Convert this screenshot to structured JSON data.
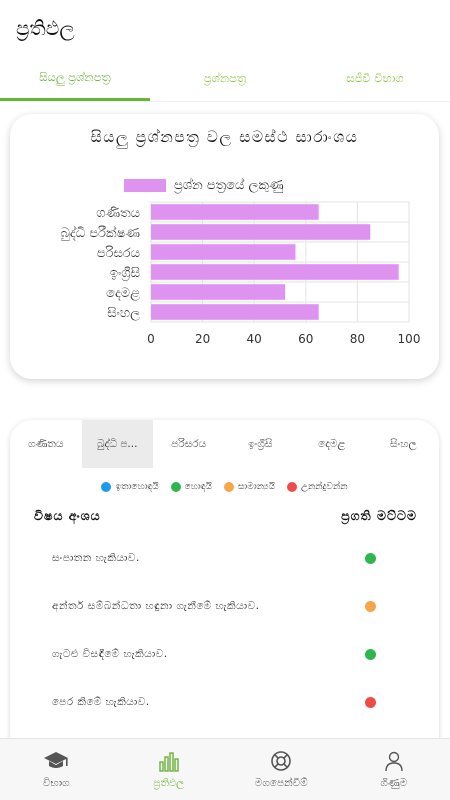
{
  "app": {
    "title": "ප්‍රතිඵල"
  },
  "tabs": [
    {
      "label": "සියලු ප්‍රශ්නපත්‍ර",
      "active": true
    },
    {
      "label": "ප්‍රශ්නපත්‍ර",
      "active": false
    },
    {
      "label": "සජීවී විභාග",
      "active": false
    }
  ],
  "chart_data": {
    "type": "bar",
    "orientation": "horizontal",
    "title": "සියලු ප්‍රශ්නපත්‍ර වල සමස්ථ සාරාංශය",
    "categories": [
      "ගණිතය",
      "බුද්ධි පරීක්ෂණ",
      "පරිසරය",
      "ඉංග්‍රීසි",
      "දෙමළ",
      "සිංහල"
    ],
    "series": [
      {
        "name": "ප්‍රශ්න පත්‍රයේ ලකුණු",
        "values": [
          65,
          85,
          56,
          96,
          52,
          65
        ]
      }
    ],
    "xlim": [
      0,
      100
    ],
    "xticks": [
      0,
      20,
      40,
      60,
      80,
      100
    ],
    "grid": true,
    "legend": "top",
    "bar_color": "#df93f1"
  },
  "subject_tabs": [
    {
      "label": "ගණිතය",
      "active": false
    },
    {
      "label": "බුද්ධි ප...",
      "active": true
    },
    {
      "label": "පරිසරය",
      "active": false
    },
    {
      "label": "ඉංග්‍රීසි",
      "active": false
    },
    {
      "label": "දෙමළ",
      "active": false
    },
    {
      "label": "සිංහල",
      "active": false
    }
  ],
  "status_legend": [
    {
      "label": "ඉතාහොඳයි",
      "color": "#1e9be8"
    },
    {
      "label": "හොඳයි",
      "color": "#2fb552"
    },
    {
      "label": "සාමාන්‍යයි",
      "color": "#f7a54a"
    },
    {
      "label": "උනන්දුවන්න",
      "color": "#ef4b4b"
    }
  ],
  "table": {
    "col_topic": "විෂය අංශය",
    "col_level": "ප්‍රගති මට්ටම",
    "rows": [
      {
        "topic": "සංපාතන හැකියාව.",
        "color": "#2fb552"
      },
      {
        "topic": "අන්තර් සම්බන්ධතා හඳුනා ගැනීමේ හැකියාව.",
        "color": "#f7a54a"
      },
      {
        "topic": "ගැටළු විසඳීමේ හැකියාව.",
        "color": "#2fb552"
      },
      {
        "topic": "පෙර කිමේ හැකියාව.",
        "color": "#ef4b4b"
      }
    ]
  },
  "bottom_nav": [
    {
      "label": "විභාග",
      "icon": "graduation-cap-icon",
      "active": false
    },
    {
      "label": "ප්‍රතිඵල",
      "icon": "bar-chart-icon",
      "active": true
    },
    {
      "label": "මගපෙන්වීම්",
      "icon": "lifebuoy-icon",
      "active": false
    },
    {
      "label": "ගිණුම",
      "icon": "person-icon",
      "active": false
    }
  ],
  "colors": {
    "accent": "#6ab23a",
    "tab_inactive": "#8cc63f"
  }
}
